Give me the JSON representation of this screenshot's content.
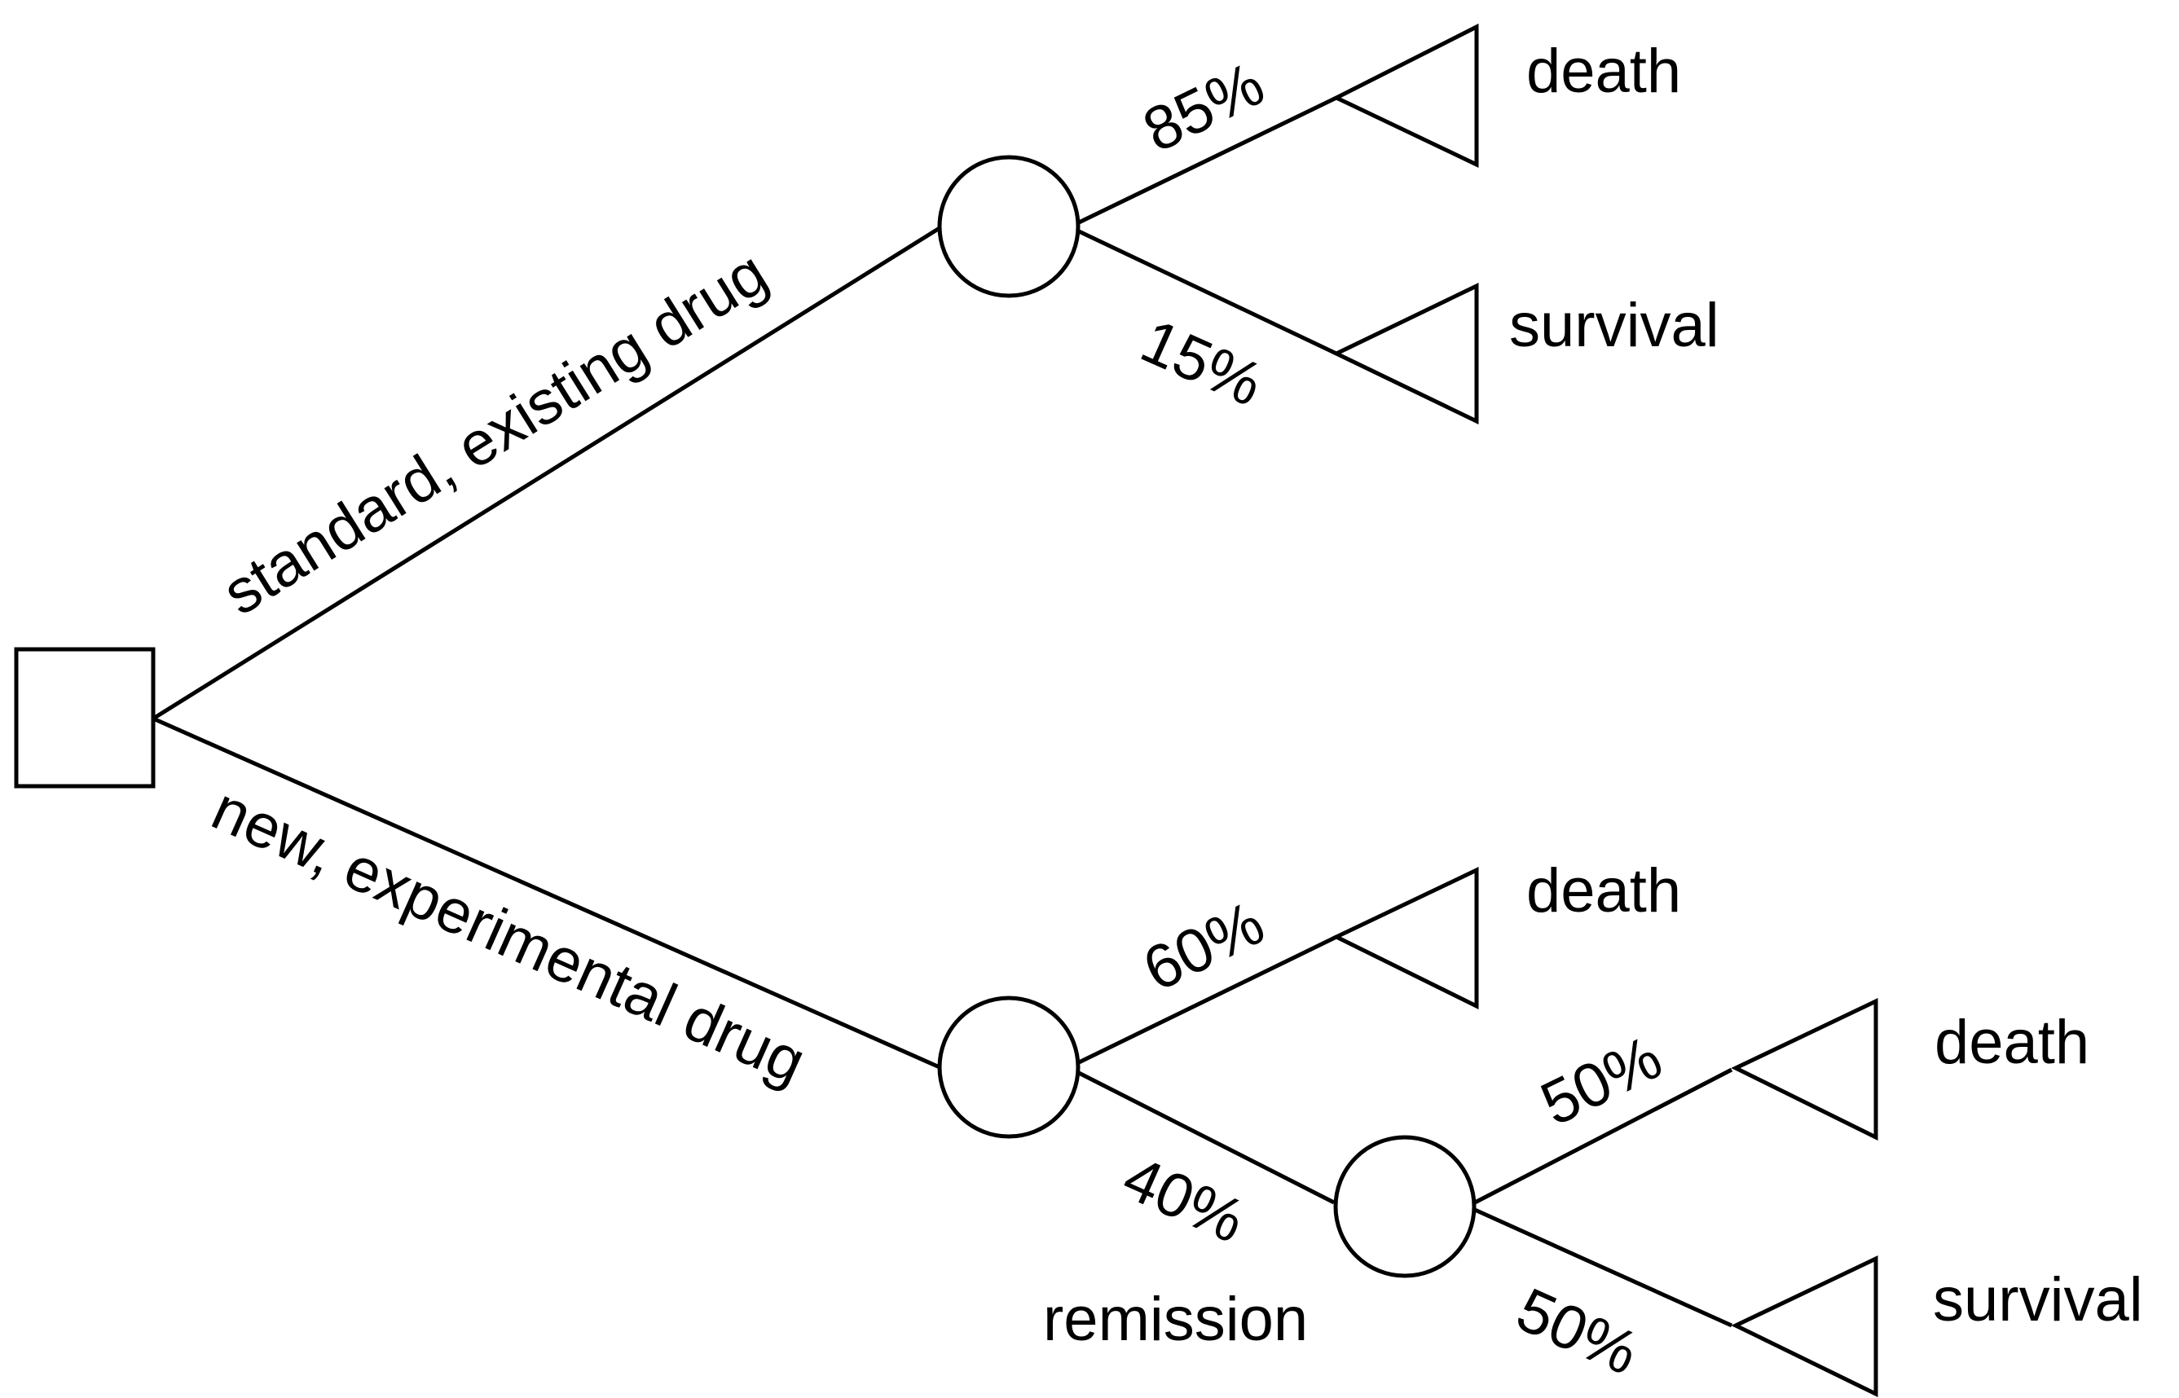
{
  "diagram": {
    "type": "decision-tree",
    "decision_node": {
      "options": [
        {
          "label": "standard, existing drug",
          "chance": {
            "outcomes": [
              {
                "probability": "85%",
                "result": "death"
              },
              {
                "probability": "15%",
                "result": "survival"
              }
            ]
          }
        },
        {
          "label": "new, experimental drug",
          "chance": {
            "outcomes": [
              {
                "probability": "60%",
                "result": "death"
              },
              {
                "probability": "40%",
                "result": "remission",
                "chance": {
                  "outcomes": [
                    {
                      "probability": "50%",
                      "result": "death"
                    },
                    {
                      "probability": "50%",
                      "result": "survival"
                    }
                  ]
                }
              }
            ]
          }
        }
      ]
    }
  }
}
